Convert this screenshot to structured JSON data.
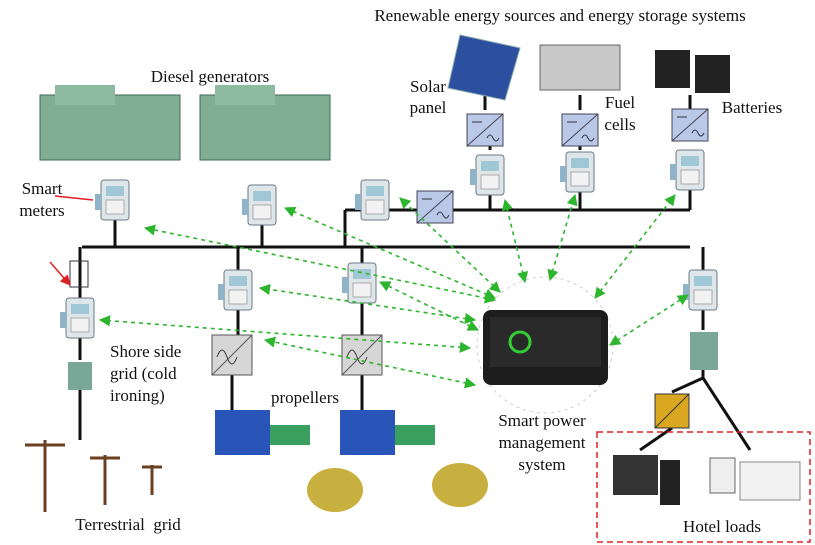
{
  "title": "Renewable energy sources and energy storage systems",
  "labels": {
    "diesel_generators": "Diesel generators",
    "solar_panel": [
      "Solar",
      "panel"
    ],
    "fuel_cells": [
      "Fuel",
      "cells"
    ],
    "batteries": "Batteries",
    "smart_meters": [
      "Smart",
      "meters"
    ],
    "shore_side_grid": [
      "Shore side",
      "grid (cold",
      "ironing)"
    ],
    "propellers": "propellers",
    "spms": [
      "Smart power",
      "management",
      "system"
    ],
    "terrestrial_grid": "Terrestrial  grid",
    "hotel_loads": "Hotel loads"
  }
}
